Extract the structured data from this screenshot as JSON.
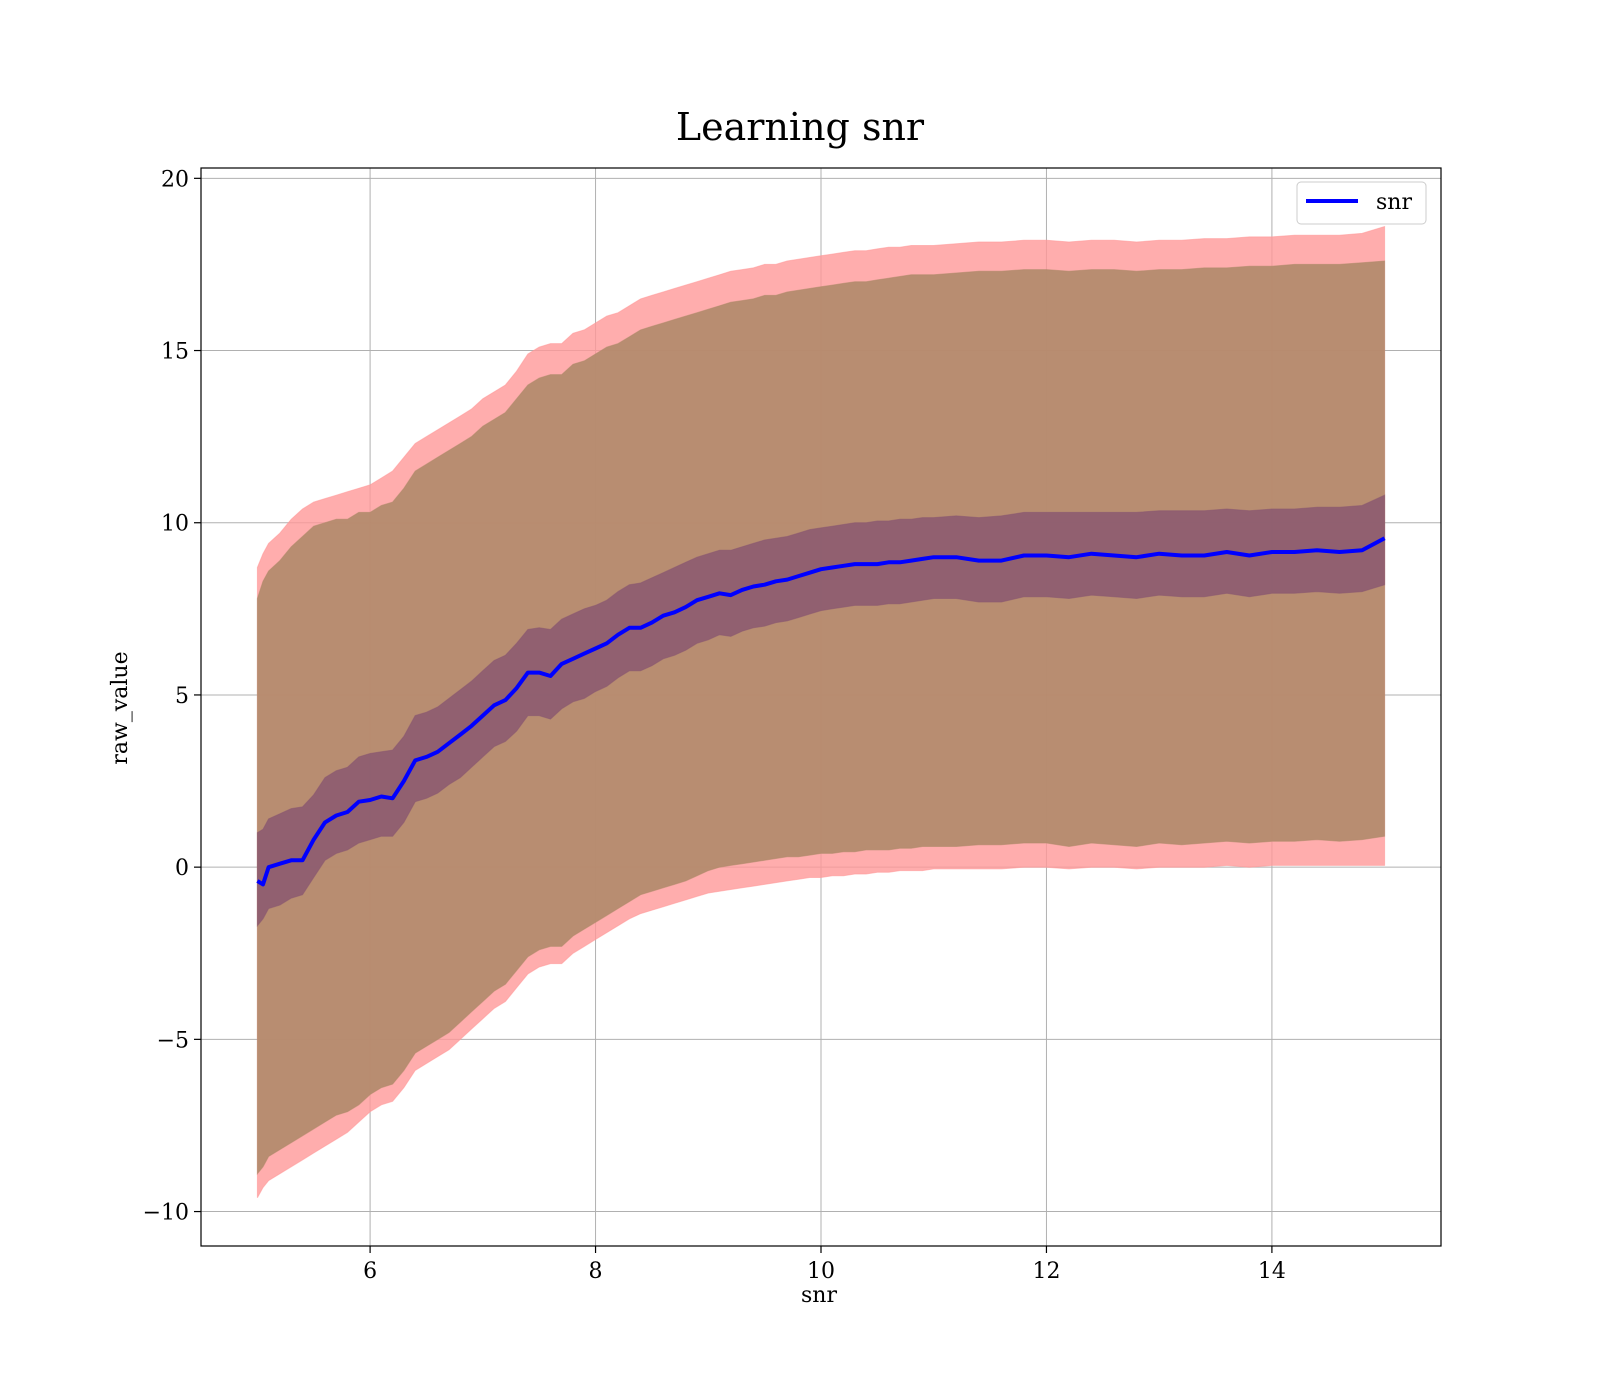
{
  "chart_data": {
    "type": "line",
    "title": "Learning snr",
    "xlabel": "snr",
    "ylabel": "raw_value",
    "xlim": [
      4.5,
      15.5
    ],
    "ylim": [
      -11,
      20.3
    ],
    "x_ticks": [
      6,
      8,
      10,
      12,
      14
    ],
    "y_ticks": [
      -10,
      -5,
      0,
      5,
      10,
      15,
      20
    ],
    "x_tick_labels": [
      "6",
      "8",
      "10",
      "12",
      "14"
    ],
    "y_tick_labels": [
      "−10",
      "−5",
      "0",
      "5",
      "10",
      "15",
      "20"
    ],
    "grid": true,
    "legend": {
      "placement": "top-right",
      "entries": [
        "snr"
      ]
    },
    "colors": {
      "line": "#0000ff",
      "outer_band": "#ff9999",
      "middle_band": "#b08a6a",
      "inner_band": "#8a5870"
    },
    "series": [
      {
        "name": "snr",
        "x": [
          5.0,
          5.05,
          5.1,
          5.2,
          5.3,
          5.4,
          5.5,
          5.6,
          5.7,
          5.8,
          5.9,
          6.0,
          6.1,
          6.2,
          6.3,
          6.4,
          6.5,
          6.6,
          6.7,
          6.8,
          6.9,
          7.0,
          7.1,
          7.2,
          7.3,
          7.4,
          7.5,
          7.6,
          7.7,
          7.8,
          7.9,
          8.0,
          8.1,
          8.2,
          8.3,
          8.4,
          8.5,
          8.6,
          8.7,
          8.8,
          8.9,
          9.0,
          9.1,
          9.2,
          9.3,
          9.4,
          9.5,
          9.6,
          9.7,
          9.8,
          9.9,
          10.0,
          10.1,
          10.2,
          10.3,
          10.4,
          10.5,
          10.6,
          10.7,
          10.8,
          10.9,
          11.0,
          11.2,
          11.4,
          11.6,
          11.8,
          12.0,
          12.2,
          12.4,
          12.6,
          12.8,
          13.0,
          13.2,
          13.4,
          13.6,
          13.8,
          14.0,
          14.2,
          14.4,
          14.6,
          14.8,
          15.0
        ],
        "mean": [
          -0.4,
          -0.5,
          0.0,
          0.1,
          0.2,
          0.2,
          0.8,
          1.3,
          1.5,
          1.6,
          1.9,
          1.95,
          2.05,
          2.0,
          2.5,
          3.1,
          3.2,
          3.35,
          3.6,
          3.85,
          4.1,
          4.4,
          4.7,
          4.85,
          5.2,
          5.65,
          5.65,
          5.55,
          5.9,
          6.05,
          6.2,
          6.35,
          6.5,
          6.75,
          6.95,
          6.95,
          7.1,
          7.3,
          7.4,
          7.55,
          7.75,
          7.85,
          7.95,
          7.9,
          8.05,
          8.15,
          8.2,
          8.3,
          8.35,
          8.45,
          8.55,
          8.65,
          8.7,
          8.75,
          8.8,
          8.8,
          8.8,
          8.85,
          8.85,
          8.9,
          8.95,
          9.0,
          9.0,
          8.9,
          8.9,
          9.05,
          9.05,
          9.0,
          9.1,
          9.05,
          9.0,
          9.1,
          9.05,
          9.05,
          9.15,
          9.05,
          9.15,
          9.15,
          9.2,
          9.15,
          9.2,
          9.55
        ],
        "inner_band": [
          1.0,
          1.1,
          1.4,
          1.55,
          1.7,
          1.75,
          2.1,
          2.6,
          2.8,
          2.9,
          3.2,
          3.3,
          3.35,
          3.4,
          3.8,
          4.4,
          4.5,
          4.65,
          4.9,
          5.15,
          5.4,
          5.7,
          6.0,
          6.15,
          6.5,
          6.9,
          6.95,
          6.9,
          7.2,
          7.35,
          7.5,
          7.6,
          7.75,
          8.0,
          8.2,
          8.25,
          8.4,
          8.55,
          8.7,
          8.85,
          9.0,
          9.1,
          9.2,
          9.2,
          9.3,
          9.4,
          9.5,
          9.55,
          9.6,
          9.7,
          9.8,
          9.85,
          9.9,
          9.95,
          10.0,
          10.0,
          10.05,
          10.05,
          10.1,
          10.1,
          10.15,
          10.15,
          10.2,
          10.15,
          10.2,
          10.3,
          10.3,
          10.3,
          10.3,
          10.3,
          10.3,
          10.35,
          10.35,
          10.35,
          10.4,
          10.35,
          10.4,
          10.4,
          10.45,
          10.45,
          10.5,
          10.8
        ],
        "inner_low": [
          -1.7,
          -1.5,
          -1.2,
          -1.1,
          -0.9,
          -0.8,
          -0.3,
          0.2,
          0.4,
          0.5,
          0.7,
          0.8,
          0.9,
          0.9,
          1.3,
          1.9,
          2.0,
          2.15,
          2.4,
          2.6,
          2.9,
          3.2,
          3.5,
          3.65,
          3.95,
          4.4,
          4.4,
          4.3,
          4.6,
          4.8,
          4.9,
          5.1,
          5.25,
          5.5,
          5.7,
          5.7,
          5.85,
          6.05,
          6.15,
          6.3,
          6.5,
          6.6,
          6.75,
          6.7,
          6.85,
          6.95,
          7.0,
          7.1,
          7.15,
          7.25,
          7.35,
          7.45,
          7.5,
          7.55,
          7.6,
          7.6,
          7.6,
          7.65,
          7.65,
          7.7,
          7.75,
          7.8,
          7.8,
          7.7,
          7.7,
          7.85,
          7.85,
          7.8,
          7.9,
          7.85,
          7.8,
          7.9,
          7.85,
          7.85,
          7.95,
          7.85,
          7.95,
          7.95,
          8.0,
          7.95,
          8.0,
          8.2
        ],
        "middle_high": [
          7.8,
          8.3,
          8.6,
          8.9,
          9.3,
          9.6,
          9.9,
          10.0,
          10.1,
          10.1,
          10.3,
          10.3,
          10.5,
          10.6,
          11.0,
          11.5,
          11.7,
          11.9,
          12.1,
          12.3,
          12.5,
          12.8,
          13.0,
          13.2,
          13.6,
          14.0,
          14.2,
          14.3,
          14.3,
          14.6,
          14.7,
          14.9,
          15.1,
          15.2,
          15.4,
          15.6,
          15.7,
          15.8,
          15.9,
          16.0,
          16.1,
          16.2,
          16.3,
          16.4,
          16.45,
          16.5,
          16.6,
          16.6,
          16.7,
          16.75,
          16.8,
          16.85,
          16.9,
          16.95,
          17.0,
          17.0,
          17.05,
          17.1,
          17.15,
          17.2,
          17.2,
          17.2,
          17.25,
          17.3,
          17.3,
          17.35,
          17.35,
          17.3,
          17.35,
          17.35,
          17.3,
          17.35,
          17.35,
          17.4,
          17.4,
          17.45,
          17.45,
          17.5,
          17.5,
          17.5,
          17.55,
          17.6
        ],
        "middle_low": [
          -8.9,
          -8.7,
          -8.4,
          -8.2,
          -8.0,
          -7.8,
          -7.6,
          -7.4,
          -7.2,
          -7.1,
          -6.9,
          -6.6,
          -6.4,
          -6.3,
          -5.9,
          -5.4,
          -5.2,
          -5.0,
          -4.8,
          -4.5,
          -4.2,
          -3.9,
          -3.6,
          -3.4,
          -3.0,
          -2.6,
          -2.4,
          -2.3,
          -2.3,
          -2.0,
          -1.8,
          -1.6,
          -1.4,
          -1.2,
          -1.0,
          -0.8,
          -0.7,
          -0.6,
          -0.5,
          -0.4,
          -0.25,
          -0.1,
          0.0,
          0.05,
          0.1,
          0.15,
          0.2,
          0.25,
          0.3,
          0.3,
          0.35,
          0.4,
          0.4,
          0.45,
          0.45,
          0.5,
          0.5,
          0.5,
          0.55,
          0.55,
          0.6,
          0.6,
          0.6,
          0.65,
          0.65,
          0.7,
          0.7,
          0.6,
          0.7,
          0.65,
          0.6,
          0.7,
          0.65,
          0.7,
          0.75,
          0.7,
          0.75,
          0.75,
          0.8,
          0.75,
          0.8,
          0.9
        ],
        "outer_high": [
          8.7,
          9.1,
          9.4,
          9.7,
          10.1,
          10.4,
          10.6,
          10.7,
          10.8,
          10.9,
          11.0,
          11.1,
          11.3,
          11.5,
          11.9,
          12.3,
          12.5,
          12.7,
          12.9,
          13.1,
          13.3,
          13.6,
          13.8,
          14.0,
          14.4,
          14.9,
          15.1,
          15.2,
          15.2,
          15.5,
          15.6,
          15.8,
          16.0,
          16.1,
          16.3,
          16.5,
          16.6,
          16.7,
          16.8,
          16.9,
          17.0,
          17.1,
          17.2,
          17.3,
          17.35,
          17.4,
          17.5,
          17.5,
          17.6,
          17.65,
          17.7,
          17.75,
          17.8,
          17.85,
          17.9,
          17.9,
          17.95,
          18.0,
          18.0,
          18.05,
          18.05,
          18.05,
          18.1,
          18.15,
          18.15,
          18.2,
          18.2,
          18.15,
          18.2,
          18.2,
          18.15,
          18.2,
          18.2,
          18.25,
          18.25,
          18.3,
          18.3,
          18.35,
          18.35,
          18.35,
          18.4,
          18.6
        ],
        "outer_low": [
          -9.6,
          -9.3,
          -9.1,
          -8.9,
          -8.7,
          -8.5,
          -8.3,
          -8.1,
          -7.9,
          -7.7,
          -7.4,
          -7.1,
          -6.9,
          -6.8,
          -6.4,
          -5.9,
          -5.7,
          -5.5,
          -5.3,
          -5.0,
          -4.7,
          -4.4,
          -4.1,
          -3.9,
          -3.5,
          -3.1,
          -2.9,
          -2.8,
          -2.8,
          -2.5,
          -2.3,
          -2.1,
          -1.9,
          -1.7,
          -1.5,
          -1.35,
          -1.25,
          -1.15,
          -1.05,
          -0.95,
          -0.85,
          -0.75,
          -0.7,
          -0.65,
          -0.6,
          -0.55,
          -0.5,
          -0.45,
          -0.4,
          -0.35,
          -0.3,
          -0.3,
          -0.25,
          -0.25,
          -0.2,
          -0.2,
          -0.15,
          -0.15,
          -0.1,
          -0.1,
          -0.1,
          -0.05,
          -0.05,
          -0.05,
          -0.05,
          0.0,
          0.0,
          -0.05,
          0.0,
          0.0,
          -0.05,
          0.0,
          0.0,
          0.0,
          0.05,
          0.0,
          0.05,
          0.05,
          0.05,
          0.05,
          0.05,
          0.05
        ]
      }
    ]
  }
}
